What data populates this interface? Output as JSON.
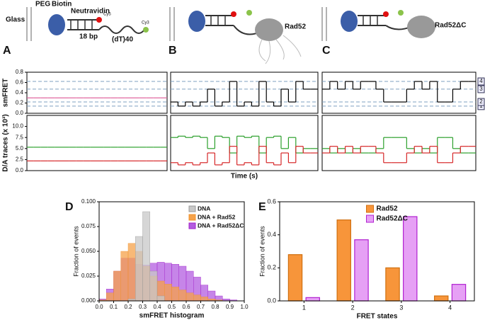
{
  "labels": [
    "A",
    "B",
    "C",
    "D",
    "E"
  ],
  "schematic": {
    "glass": "Glass",
    "peg": "PEG",
    "biotin": "Biotin",
    "neutravidin": "Neutravidin",
    "bp": "18 bp",
    "cy5": "Cy5",
    "dt": "(dT)40",
    "cy3": "Cy3",
    "rad52": "Rad52",
    "rad52dc": "Rad52ΔC"
  },
  "chart_data": [
    {
      "type": "trace",
      "x_label": "Time (s)",
      "fret_label": "smFRET",
      "da_label": "D/A traces (x 10³)",
      "fret_ylim": [
        0,
        0.8
      ],
      "fret_yticks": [
        {
          "value": 0,
          "label": "0.0"
        },
        {
          "value": 0.2,
          "label": "0.2"
        },
        {
          "value": 0.4,
          "label": "0.4"
        },
        {
          "value": 0.6,
          "label": "0.6"
        },
        {
          "value": 0.8,
          "label": "0.8"
        }
      ],
      "da_ylim": [
        0,
        12.5
      ],
      "da_yticks": [
        {
          "value": 0,
          "label": "0.0"
        },
        2.5,
        {
          "value": 5,
          "label": "5.0"
        },
        7.5,
        {
          "value": 10,
          "label": "10.0"
        }
      ],
      "states": [
        {
          "value": 0.14,
          "label": "1"
        },
        {
          "value": 0.22,
          "label": "2"
        },
        {
          "value": 0.47,
          "label": "3"
        },
        {
          "value": 0.62,
          "label": "4"
        }
      ],
      "fret_color": "#e0609a",
      "donor_color": "#2ca02c",
      "acceptor_color": "#d62728",
      "panels": [
        {
          "fret": [
            0.3,
            0.3,
            0.3,
            0.3,
            0.3,
            0.3,
            0.3,
            0.3,
            0.3,
            0.3,
            0.3,
            0.3,
            0.3,
            0.3,
            0.3,
            0.3,
            0.3,
            0.3,
            0.3,
            0.3
          ],
          "donor": [
            5.3,
            5.3,
            5.3,
            5.3,
            5.3,
            5.3,
            5.3,
            5.3,
            5.3,
            5.3,
            5.3,
            5.3,
            5.3,
            5.3,
            5.3,
            5.3,
            5.3,
            5.3,
            5.3,
            5.3
          ],
          "acceptor": [
            2.2,
            2.2,
            2.2,
            2.2,
            2.2,
            2.2,
            2.2,
            2.2,
            2.2,
            2.2,
            2.2,
            2.2,
            2.2,
            2.2,
            2.2,
            2.2,
            2.2,
            2.2,
            2.2,
            2.2
          ]
        },
        {
          "fret": [
            0.22,
            0.14,
            0.22,
            0.14,
            0.22,
            0.47,
            0.14,
            0.22,
            0.62,
            0.14,
            0.22,
            0.14,
            0.62,
            0.22,
            0.14,
            0.47,
            0.22,
            0.62,
            0.47,
            0.47
          ],
          "donor": [
            7.5,
            7.8,
            7.5,
            7.8,
            7.5,
            5,
            7.8,
            7.5,
            4,
            7.8,
            7.5,
            7.8,
            4,
            7.5,
            7.8,
            5,
            7.5,
            4,
            5,
            5
          ],
          "acceptor": [
            1.8,
            1.3,
            1.8,
            1.3,
            1.8,
            4,
            1.3,
            1.8,
            5.5,
            1.3,
            1.8,
            1.3,
            5.5,
            1.8,
            1.3,
            4,
            1.8,
            5.5,
            4,
            4
          ]
        },
        {
          "fret": [
            0.47,
            0.62,
            0.47,
            0.62,
            0.47,
            0.62,
            0.62,
            0.47,
            0.22,
            0.22,
            0.22,
            0.47,
            0.62,
            0.47,
            0.62,
            0.22,
            0.22,
            0.47,
            0.62,
            0.62
          ],
          "donor": [
            5,
            4,
            5,
            4,
            5,
            4,
            4,
            5,
            7.5,
            7.5,
            7.5,
            5,
            4,
            5,
            4,
            7.5,
            7.5,
            5,
            4,
            4
          ],
          "acceptor": [
            4,
            5.5,
            4,
            5.5,
            4,
            5.5,
            5.5,
            4,
            1.8,
            1.8,
            1.8,
            4,
            5.5,
            4,
            5.5,
            1.8,
            1.8,
            4,
            5.5,
            5.5
          ]
        }
      ]
    },
    {
      "type": "histogram",
      "x_label": "smFRET histogram",
      "y_label": "Fraction of events",
      "legend": "top-right",
      "bins": [
        0,
        0.05,
        0.1,
        0.15,
        0.2,
        0.25,
        0.3,
        0.35,
        0.4,
        0.45,
        0.5,
        0.55,
        0.6,
        0.65,
        0.7,
        0.75,
        0.8,
        0.85,
        0.9,
        0.95,
        1
      ],
      "xlim": [
        0,
        1
      ],
      "xticks": [
        {
          "value": 0,
          "label": "0.0"
        },
        0.1,
        0.2,
        0.3,
        0.4,
        0.5,
        0.6,
        0.7,
        0.8,
        0.9,
        {
          "value": 1,
          "label": "1.0"
        }
      ],
      "ylim": [
        0,
        0.1
      ],
      "yticks": [
        {
          "value": 0,
          "label": "0.000"
        },
        0.025,
        {
          "value": 0.05,
          "label": "0.050"
        },
        0.075,
        {
          "value": 0.1,
          "label": "0.100"
        }
      ],
      "series": [
        {
          "name": "DNA + Rad52ΔC",
          "color": "#a020c8",
          "fill": "#b35ce0",
          "values": [
            0.002,
            0.012,
            0.03,
            0.043,
            0.043,
            0.037,
            0.036,
            0.038,
            0.039,
            0.038,
            0.037,
            0.035,
            0.03,
            0.024,
            0.016,
            0.01,
            0.005,
            0.002,
            0.001,
            0
          ]
        },
        {
          "name": "DNA + Rad52",
          "color": "#f0922c",
          "fill": "#f5a24a",
          "values": [
            0.001,
            0.008,
            0.03,
            0.05,
            0.058,
            0.05,
            0.035,
            0.025,
            0.02,
            0.017,
            0.014,
            0.011,
            0.008,
            0.006,
            0.004,
            0.002,
            0.001,
            0,
            0,
            0
          ]
        },
        {
          "name": "DNA",
          "color": "#999999",
          "fill": "#c8c8c8",
          "values": [
            0,
            0,
            0,
            0,
            0.002,
            0.065,
            0.09,
            0.03,
            0.005,
            0,
            0,
            0,
            0,
            0,
            0,
            0,
            0,
            0,
            0,
            0
          ]
        }
      ]
    },
    {
      "type": "bar",
      "x_label": "FRET states",
      "y_label": "Fraction of events",
      "legend": "top",
      "categories": [
        "1",
        "2",
        "3",
        "4"
      ],
      "ylim": [
        0,
        0.6
      ],
      "yticks": [
        {
          "value": 0,
          "label": "0.0"
        },
        0.2,
        0.4,
        0.6
      ],
      "series": [
        {
          "name": "Rad52",
          "color": "#f7953a",
          "values": [
            0.28,
            0.49,
            0.2,
            0.03
          ]
        },
        {
          "name": "Rad52ΔC",
          "color": "#e6a0f5",
          "stroke": "#b020d0",
          "values": [
            0.02,
            0.37,
            0.51,
            0.1
          ]
        }
      ]
    }
  ]
}
